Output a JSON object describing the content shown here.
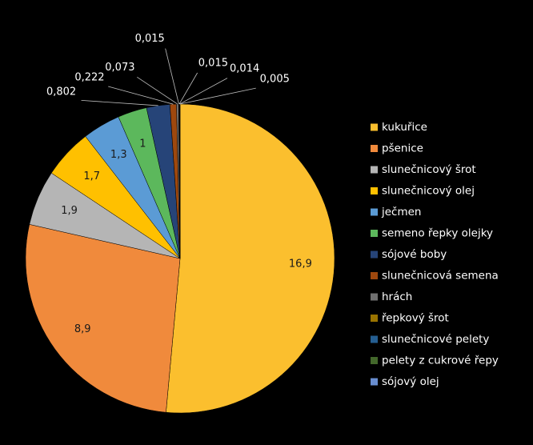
{
  "chart_data": {
    "type": "pie",
    "categories": [
      "kukuřice",
      "pšenice",
      "slunečnicový šrot",
      "slunečnicový olej",
      "ječmen",
      "semeno řepky olejky",
      "sójové boby",
      "slunečnicová semena",
      "hrách",
      "řepkový šrot",
      "slunečnicové pelety",
      "pelety z cukrové řepy",
      "sójový olej"
    ],
    "values": [
      16.9,
      8.9,
      1.9,
      1.7,
      1.3,
      1,
      0.802,
      0.222,
      0.073,
      0.015,
      0.015,
      0.014,
      0.005
    ],
    "value_labels": [
      "16,9",
      "8,9",
      "1,9",
      "1,7",
      "1,3",
      "1",
      "0,802",
      "0,222",
      "0,073",
      "0,015",
      "0,015",
      "0,014",
      "0,005"
    ],
    "colors": [
      "#fbbf2e",
      "#f08a3c",
      "#b5b5b5",
      "#ffc000",
      "#5b9bd5",
      "#5cb85c",
      "#264478",
      "#9e480e",
      "#707070",
      "#997300",
      "#255e91",
      "#43682b",
      "#698ed0"
    ],
    "legend": "right"
  }
}
